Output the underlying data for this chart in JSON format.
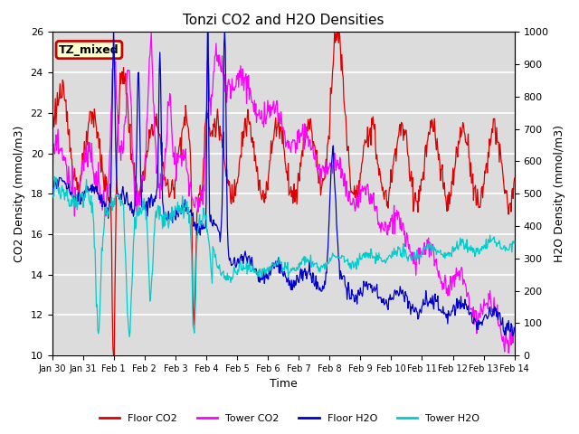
{
  "title": "Tonzi CO2 and H2O Densities",
  "xlabel": "Time",
  "ylabel_left": "CO2 Density (mmol/m3)",
  "ylabel_right": "H2O Density (mmol/m3)",
  "ylim_left": [
    10,
    26
  ],
  "ylim_right": [
    0,
    1000
  ],
  "annotation_text": "TZ_mixed",
  "annotation_bbox_facecolor": "#ffffcc",
  "annotation_bbox_edgecolor": "#cc0000",
  "colors": {
    "floor_co2": "#dd0000",
    "tower_co2": "#ff00ff",
    "floor_h2o": "#0000cc",
    "tower_h2o": "#00cccc"
  },
  "background_color": "#dcdcdc",
  "grid_color": "#ffffff",
  "tick_labels": [
    "Jan 30",
    "Jan 31",
    "Feb 1",
    "Feb 2",
    "Feb 3",
    "Feb 4",
    "Feb 5",
    "Feb 6",
    "Feb 7",
    "Feb 8",
    "Feb 9",
    "Feb 10",
    "Feb 11",
    "Feb 12",
    "Feb 13",
    "Feb 14"
  ],
  "num_points": 700,
  "figsize": [
    6.4,
    4.8
  ],
  "dpi": 100
}
